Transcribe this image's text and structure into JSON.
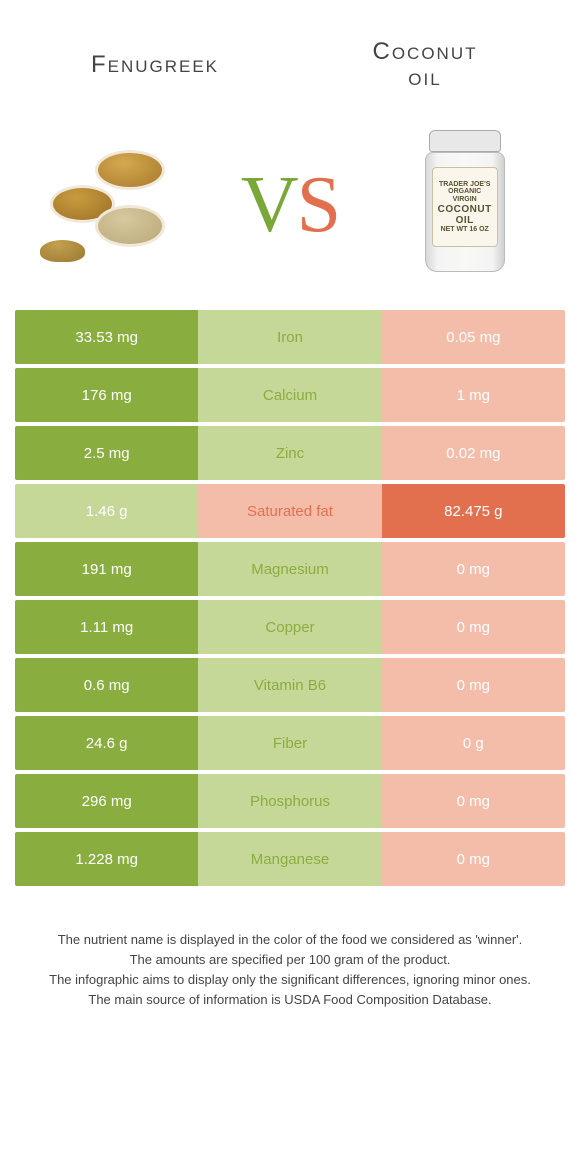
{
  "header": {
    "left_title": "Fenugreek",
    "right_title_line1": "Coconut",
    "right_title_line2": "oil"
  },
  "vs": {
    "v": "V",
    "s": "S"
  },
  "jar": {
    "line1": "TRADER JOE'S",
    "line2": "ORGANIC",
    "line3": "VIRGIN",
    "big1": "COCONUT",
    "big2": "OIL",
    "net": "NET WT 16 OZ"
  },
  "colors": {
    "green_dark": "#8aad3f",
    "green_light": "#c6d898",
    "orange_dark": "#e2704f",
    "orange_light": "#f3bdaa",
    "white": "#ffffff"
  },
  "rows": [
    {
      "nutrient": "Iron",
      "left": "33.53 mg",
      "right": "0.05 mg",
      "winner": "left"
    },
    {
      "nutrient": "Calcium",
      "left": "176 mg",
      "right": "1 mg",
      "winner": "left"
    },
    {
      "nutrient": "Zinc",
      "left": "2.5 mg",
      "right": "0.02 mg",
      "winner": "left"
    },
    {
      "nutrient": "Saturated fat",
      "left": "1.46 g",
      "right": "82.475 g",
      "winner": "right"
    },
    {
      "nutrient": "Magnesium",
      "left": "191 mg",
      "right": "0 mg",
      "winner": "left"
    },
    {
      "nutrient": "Copper",
      "left": "1.11 mg",
      "right": "0 mg",
      "winner": "left"
    },
    {
      "nutrient": "Vitamin B6",
      "left": "0.6 mg",
      "right": "0 mg",
      "winner": "left"
    },
    {
      "nutrient": "Fiber",
      "left": "24.6 g",
      "right": "0 g",
      "winner": "left"
    },
    {
      "nutrient": "Phosphorus",
      "left": "296 mg",
      "right": "0 mg",
      "winner": "left"
    },
    {
      "nutrient": "Manganese",
      "left": "1.228 mg",
      "right": "0 mg",
      "winner": "left"
    }
  ],
  "footer": {
    "l1": "The nutrient name is displayed in the color of the food we considered as 'winner'.",
    "l2": "The amounts are specified per 100 gram of the product.",
    "l3": "The infographic aims to display only the significant differences, ignoring minor ones.",
    "l4": "The main source of information is USDA Food Composition Database."
  }
}
